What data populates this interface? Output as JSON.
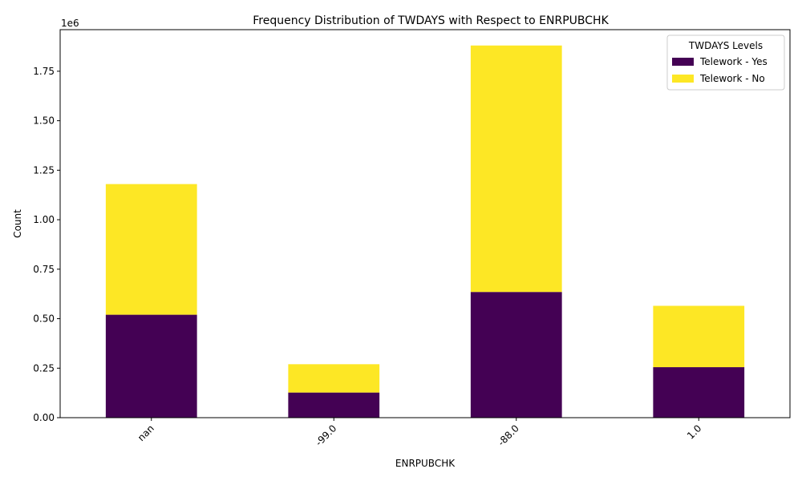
{
  "chart_data": {
    "type": "bar",
    "stacked": true,
    "title": "Frequency Distribution of TWDAYS with Respect to ENRPUBCHK",
    "xlabel": "ENRPUBCHK",
    "ylabel": "Count",
    "y_offset_label": "1e6",
    "categories": [
      "nan",
      "-99.0",
      "-88.0",
      "1.0"
    ],
    "series": [
      {
        "name": "Telework - Yes",
        "color": "#440154",
        "values": [
          520000,
          127000,
          635000,
          255000
        ]
      },
      {
        "name": "Telework - No",
        "color": "#fde725",
        "values": [
          660000,
          143000,
          1245000,
          310000
        ]
      }
    ],
    "ylim": [
      0,
      1960000
    ],
    "yticks": [
      0,
      250000,
      500000,
      750000,
      1000000,
      1250000,
      1500000,
      1750000
    ],
    "ytick_labels": [
      "0.00",
      "0.25",
      "0.50",
      "0.75",
      "1.00",
      "1.25",
      "1.50",
      "1.75"
    ],
    "xtick_rotation": 45,
    "legend": {
      "title": "TWDAYS Levels",
      "placement": "top-right"
    },
    "grid": false
  }
}
